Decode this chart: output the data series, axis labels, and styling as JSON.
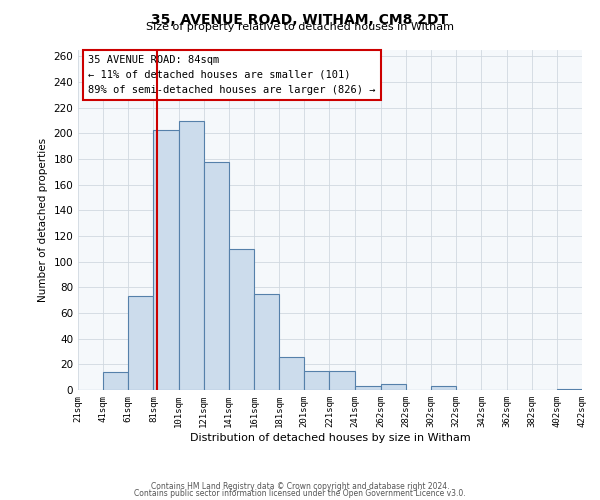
{
  "title": "35, AVENUE ROAD, WITHAM, CM8 2DT",
  "subtitle": "Size of property relative to detached houses in Witham",
  "xlabel": "Distribution of detached houses by size in Witham",
  "ylabel": "Number of detached properties",
  "bar_color": "#ccdcec",
  "bar_edge_color": "#5580aa",
  "vline_color": "#cc0000",
  "vline_x": 84,
  "annotation_title": "35 AVENUE ROAD: 84sqm",
  "annotation_line1": "← 11% of detached houses are smaller (101)",
  "annotation_line2": "89% of semi-detached houses are larger (826) →",
  "annotation_box_edgecolor": "#cc0000",
  "footer1": "Contains HM Land Registry data © Crown copyright and database right 2024.",
  "footer2": "Contains public sector information licensed under the Open Government Licence v3.0.",
  "bins": [
    21,
    41,
    61,
    81,
    101,
    121,
    141,
    161,
    181,
    201,
    221,
    241,
    262,
    282,
    302,
    322,
    342,
    362,
    382,
    402,
    422
  ],
  "counts": [
    0,
    14,
    73,
    203,
    210,
    178,
    110,
    75,
    26,
    15,
    15,
    3,
    5,
    0,
    3,
    0,
    0,
    0,
    0,
    1
  ],
  "ylim": [
    0,
    265
  ],
  "yticks": [
    0,
    20,
    40,
    60,
    80,
    100,
    120,
    140,
    160,
    180,
    200,
    220,
    240,
    260
  ],
  "background_color": "#f0f4f8"
}
